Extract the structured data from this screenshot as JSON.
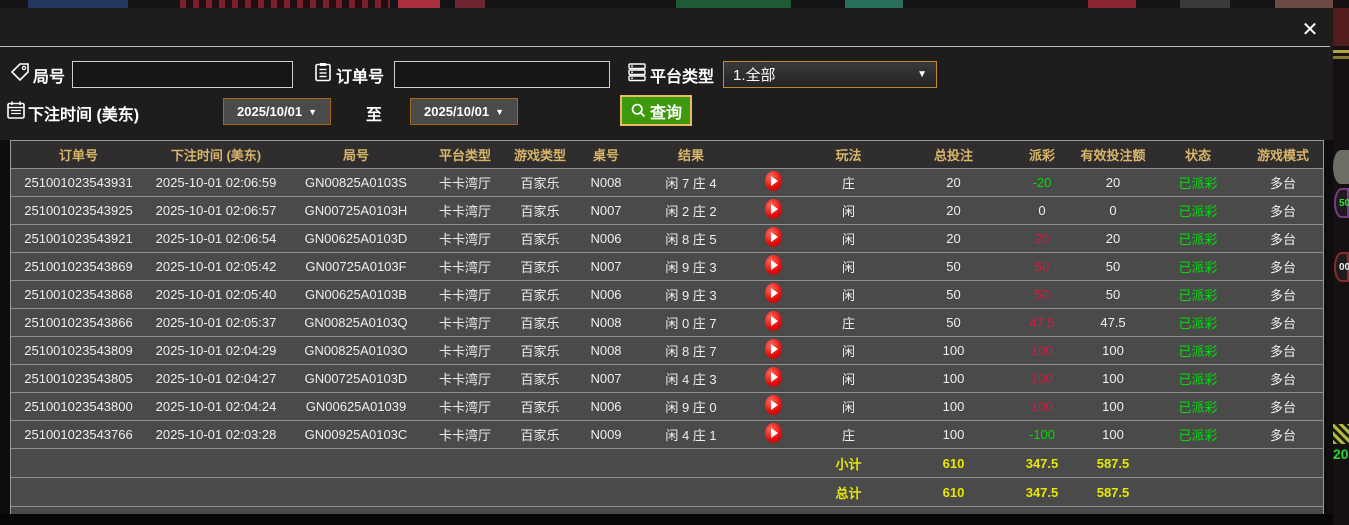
{
  "window": {
    "close": "✕"
  },
  "icons": {
    "dropdown_arrow": "▼",
    "close": "✕"
  },
  "colors": {
    "header_gold": "#d7b56a",
    "win_red": "#cf1d3e",
    "loss_green": "#00dc00",
    "status_green": "#00dc0c",
    "total_yellow": "#e8e800",
    "search_button_green": "#3f990d",
    "picker_border_orange": "#a4651c"
  },
  "filters": {
    "round_label": "局号",
    "round_value": "",
    "order_label": "订单号",
    "order_value": "",
    "platform_label": "平台类型",
    "platform_value": "1.全部",
    "bet_time_label": "下注时间 (美东)",
    "date_from": "2025/10/01",
    "to_label": "至",
    "date_to": "2025/10/01",
    "search_label": "查询"
  },
  "table": {
    "headers": [
      "订单号",
      "下注时间 (美东)",
      "局号",
      "平台类型",
      "游戏类型",
      "桌号",
      "结果",
      "",
      "玩法",
      "总投注",
      "派彩",
      "有效投注额",
      "状态",
      "游戏模式"
    ],
    "rows": [
      {
        "order_no": "251001023543931",
        "bet_time": "2025-10-01 02:06:59",
        "round_no": "GN00825A0103S",
        "platform": "卡卡湾厅",
        "game_type": "百家乐",
        "table_no": "N008",
        "result": "闲 7 庄 4",
        "bet_type": "庄",
        "total_bet": "20",
        "payout": "-20",
        "payout_class": "neg",
        "valid_bet": "20",
        "status": "已派彩",
        "game_mode": "多台"
      },
      {
        "order_no": "251001023543925",
        "bet_time": "2025-10-01 02:06:57",
        "round_no": "GN00725A0103H",
        "platform": "卡卡湾厅",
        "game_type": "百家乐",
        "table_no": "N007",
        "result": "闲 2 庄 2",
        "bet_type": "闲",
        "total_bet": "20",
        "payout": "0",
        "payout_class": "zero",
        "valid_bet": "0",
        "status": "已派彩",
        "game_mode": "多台"
      },
      {
        "order_no": "251001023543921",
        "bet_time": "2025-10-01 02:06:54",
        "round_no": "GN00625A0103D",
        "platform": "卡卡湾厅",
        "game_type": "百家乐",
        "table_no": "N006",
        "result": "闲 8 庄 5",
        "bet_type": "闲",
        "total_bet": "20",
        "payout": "20",
        "payout_class": "pos",
        "valid_bet": "20",
        "status": "已派彩",
        "game_mode": "多台"
      },
      {
        "order_no": "251001023543869",
        "bet_time": "2025-10-01 02:05:42",
        "round_no": "GN00725A0103F",
        "platform": "卡卡湾厅",
        "game_type": "百家乐",
        "table_no": "N007",
        "result": "闲 9 庄 3",
        "bet_type": "闲",
        "total_bet": "50",
        "payout": "50",
        "payout_class": "pos",
        "valid_bet": "50",
        "status": "已派彩",
        "game_mode": "多台"
      },
      {
        "order_no": "251001023543868",
        "bet_time": "2025-10-01 02:05:40",
        "round_no": "GN00625A0103B",
        "platform": "卡卡湾厅",
        "game_type": "百家乐",
        "table_no": "N006",
        "result": "闲 9 庄 3",
        "bet_type": "闲",
        "total_bet": "50",
        "payout": "50",
        "payout_class": "pos",
        "valid_bet": "50",
        "status": "已派彩",
        "game_mode": "多台"
      },
      {
        "order_no": "251001023543866",
        "bet_time": "2025-10-01 02:05:37",
        "round_no": "GN00825A0103Q",
        "platform": "卡卡湾厅",
        "game_type": "百家乐",
        "table_no": "N008",
        "result": "闲 0 庄 7",
        "bet_type": "庄",
        "total_bet": "50",
        "payout": "47.5",
        "payout_class": "pos",
        "valid_bet": "47.5",
        "status": "已派彩",
        "game_mode": "多台"
      },
      {
        "order_no": "251001023543809",
        "bet_time": "2025-10-01 02:04:29",
        "round_no": "GN00825A0103O",
        "platform": "卡卡湾厅",
        "game_type": "百家乐",
        "table_no": "N008",
        "result": "闲 8 庄 7",
        "bet_type": "闲",
        "total_bet": "100",
        "payout": "100",
        "payout_class": "pos",
        "valid_bet": "100",
        "status": "已派彩",
        "game_mode": "多台"
      },
      {
        "order_no": "251001023543805",
        "bet_time": "2025-10-01 02:04:27",
        "round_no": "GN00725A0103D",
        "platform": "卡卡湾厅",
        "game_type": "百家乐",
        "table_no": "N007",
        "result": "闲 4 庄 3",
        "bet_type": "闲",
        "total_bet": "100",
        "payout": "100",
        "payout_class": "pos",
        "valid_bet": "100",
        "status": "已派彩",
        "game_mode": "多台"
      },
      {
        "order_no": "251001023543800",
        "bet_time": "2025-10-01 02:04:24",
        "round_no": "GN00625A01039",
        "platform": "卡卡湾厅",
        "game_type": "百家乐",
        "table_no": "N006",
        "result": "闲 9 庄 0",
        "bet_type": "闲",
        "total_bet": "100",
        "payout": "100",
        "payout_class": "pos",
        "valid_bet": "100",
        "status": "已派彩",
        "game_mode": "多台"
      },
      {
        "order_no": "251001023543766",
        "bet_time": "2025-10-01 02:03:28",
        "round_no": "GN00925A0103C",
        "platform": "卡卡湾厅",
        "game_type": "百家乐",
        "table_no": "N009",
        "result": "闲 4 庄 1",
        "bet_type": "庄",
        "total_bet": "100",
        "payout": "-100",
        "payout_class": "neg",
        "valid_bet": "100",
        "status": "已派彩",
        "game_mode": "多台"
      }
    ],
    "subtotal": {
      "label": "小计",
      "total_bet": "610",
      "payout": "347.5",
      "valid_bet": "587.5"
    },
    "total": {
      "label": "总计",
      "total_bet": "610",
      "payout": "347.5",
      "valid_bet": "587.5"
    }
  },
  "background_right": {
    "chip1": "50",
    "chip2": "00",
    "amount": "20"
  }
}
